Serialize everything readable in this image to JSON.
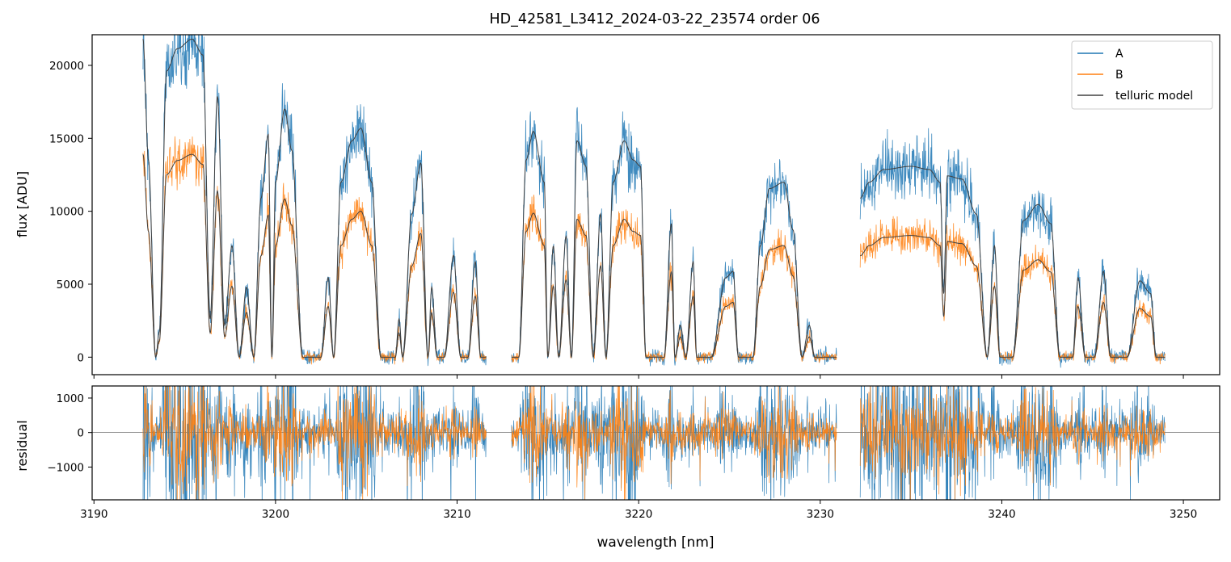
{
  "title": "HD_42581_L3412_2024-03-22_23574  order 06",
  "chart_data": [
    {
      "type": "line",
      "panel": "spectrum",
      "ylabel": "flux [ADU]",
      "xlim": [
        3189.9,
        3252.0
      ],
      "ylim": [
        -1200,
        22100
      ],
      "yticks": [
        0,
        5000,
        10000,
        15000,
        20000
      ],
      "ytick_labels": [
        "0",
        "5000",
        "10000",
        "15000",
        "20000"
      ],
      "legend": {
        "placement": "top-right",
        "entries": [
          "A",
          "B",
          "telluric model"
        ]
      },
      "segments": [
        [
          3192.7,
          3211.6
        ],
        [
          3213.0,
          3230.9
        ],
        [
          3232.2,
          3249.0
        ]
      ],
      "model_envelope": [
        [
          3192.7,
          1.0
        ],
        [
          3193.0,
          0.62
        ],
        [
          3193.4,
          0.0
        ],
        [
          3193.6,
          0.08
        ],
        [
          3194.0,
          0.9
        ],
        [
          3194.6,
          0.97
        ],
        [
          3195.4,
          1.0
        ],
        [
          3196.0,
          0.95
        ],
        [
          3196.4,
          0.12
        ],
        [
          3196.8,
          0.82
        ],
        [
          3197.2,
          0.1
        ],
        [
          3197.6,
          0.35
        ],
        [
          3198.0,
          0.0
        ],
        [
          3198.4,
          0.22
        ],
        [
          3198.8,
          0.0
        ],
        [
          3199.2,
          0.5
        ],
        [
          3199.6,
          0.7
        ],
        [
          3199.8,
          0.0
        ],
        [
          3200.0,
          0.55
        ],
        [
          3200.5,
          0.78
        ],
        [
          3200.9,
          0.65
        ],
        [
          3201.5,
          0.0
        ],
        [
          3202.5,
          0.0
        ],
        [
          3202.9,
          0.25
        ],
        [
          3203.2,
          0.0
        ],
        [
          3203.6,
          0.55
        ],
        [
          3204.2,
          0.68
        ],
        [
          3204.7,
          0.72
        ],
        [
          3205.3,
          0.55
        ],
        [
          3205.8,
          0.0
        ],
        [
          3206.6,
          0.0
        ],
        [
          3206.8,
          0.12
        ],
        [
          3207.0,
          0.0
        ],
        [
          3207.5,
          0.45
        ],
        [
          3208.0,
          0.61
        ],
        [
          3208.4,
          0.0
        ],
        [
          3208.6,
          0.22
        ],
        [
          3208.9,
          0.0
        ],
        [
          3209.3,
          0.0
        ],
        [
          3209.8,
          0.32
        ],
        [
          3210.2,
          0.0
        ],
        [
          3210.6,
          0.0
        ],
        [
          3211.0,
          0.3
        ],
        [
          3211.3,
          0.0
        ],
        [
          3213.0,
          0.0
        ],
        [
          3213.4,
          0.0
        ],
        [
          3213.8,
          0.62
        ],
        [
          3214.2,
          0.71
        ],
        [
          3214.8,
          0.55
        ],
        [
          3215.0,
          0.0
        ],
        [
          3215.3,
          0.35
        ],
        [
          3215.6,
          0.0
        ],
        [
          3216.0,
          0.38
        ],
        [
          3216.3,
          0.0
        ],
        [
          3216.6,
          0.68
        ],
        [
          3217.1,
          0.6
        ],
        [
          3217.5,
          0.0
        ],
        [
          3217.9,
          0.45
        ],
        [
          3218.2,
          0.0
        ],
        [
          3218.6,
          0.55
        ],
        [
          3219.2,
          0.68
        ],
        [
          3219.7,
          0.62
        ],
        [
          3220.1,
          0.6
        ],
        [
          3220.4,
          0.0
        ],
        [
          3221.4,
          0.0
        ],
        [
          3221.8,
          0.42
        ],
        [
          3222.0,
          0.0
        ],
        [
          3222.3,
          0.1
        ],
        [
          3222.6,
          0.0
        ],
        [
          3223.0,
          0.3
        ],
        [
          3223.2,
          0.0
        ],
        [
          3224.0,
          0.0
        ],
        [
          3224.8,
          0.25
        ],
        [
          3225.2,
          0.27
        ],
        [
          3225.5,
          0.0
        ],
        [
          3226.3,
          0.0
        ],
        [
          3226.7,
          0.35
        ],
        [
          3227.2,
          0.53
        ],
        [
          3228.0,
          0.55
        ],
        [
          3228.5,
          0.4
        ],
        [
          3229.0,
          0.0
        ],
        [
          3229.4,
          0.1
        ],
        [
          3229.7,
          0.0
        ],
        [
          3230.9,
          0.0
        ],
        [
          3232.2,
          0.5
        ],
        [
          3232.7,
          0.55
        ],
        [
          3233.5,
          0.59
        ],
        [
          3235.0,
          0.6
        ],
        [
          3236.0,
          0.59
        ],
        [
          3236.6,
          0.55
        ],
        [
          3236.8,
          0.2
        ],
        [
          3237.0,
          0.57
        ],
        [
          3237.8,
          0.56
        ],
        [
          3238.6,
          0.45
        ],
        [
          3239.2,
          0.0
        ],
        [
          3239.6,
          0.35
        ],
        [
          3239.9,
          0.0
        ],
        [
          3240.6,
          0.0
        ],
        [
          3241.2,
          0.43
        ],
        [
          3242.0,
          0.48
        ],
        [
          3242.7,
          0.42
        ],
        [
          3243.2,
          0.0
        ],
        [
          3243.9,
          0.0
        ],
        [
          3244.2,
          0.25
        ],
        [
          3244.6,
          0.0
        ],
        [
          3245.1,
          0.0
        ],
        [
          3245.6,
          0.27
        ],
        [
          3246.0,
          0.0
        ],
        [
          3246.9,
          0.0
        ],
        [
          3247.6,
          0.24
        ],
        [
          3248.2,
          0.2
        ],
        [
          3248.5,
          0.0
        ],
        [
          3249.0,
          0.0
        ]
      ],
      "scale_A": 21800,
      "scale_B": 13900,
      "series": [
        {
          "name": "A",
          "color": "#1f77b4"
        },
        {
          "name": "B",
          "color": "#ff7f0e"
        },
        {
          "name": "telluric model",
          "color": "#404040"
        }
      ]
    },
    {
      "type": "line",
      "panel": "residual",
      "xlabel": "wavelength [nm]",
      "ylabel": "residual",
      "xlim": [
        3189.9,
        3252.0
      ],
      "ylim": [
        -1950,
        1350
      ],
      "xticks": [
        3190,
        3200,
        3210,
        3220,
        3230,
        3240,
        3250
      ],
      "xtick_labels": [
        "3190",
        "3200",
        "3210",
        "3220",
        "3230",
        "3240",
        "3250"
      ],
      "yticks": [
        -1000,
        0,
        1000
      ],
      "ytick_labels": [
        "−1000",
        "0",
        "1000"
      ],
      "zero_line": 0,
      "series": [
        {
          "name": "A",
          "color": "#1f77b4"
        },
        {
          "name": "B",
          "color": "#ff7f0e"
        }
      ]
    }
  ]
}
